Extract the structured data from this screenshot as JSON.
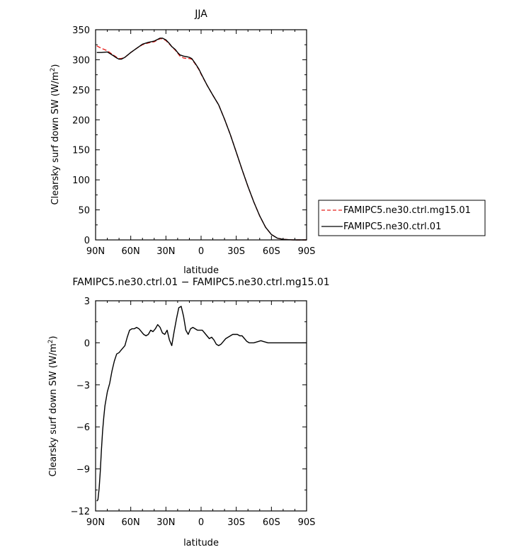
{
  "chart_data": [
    {
      "type": "line",
      "title": "JJA",
      "xlabel": "latitude",
      "ylabel": "Clearsky surf down SW (W/m",
      "ylabel_sup": "2",
      "ylabel_close": ")",
      "xlim": [
        90,
        -90
      ],
      "ylim": [
        0,
        350
      ],
      "xticks": [
        90,
        60,
        30,
        0,
        -30,
        -60,
        -90
      ],
      "xtick_labels": [
        "90N",
        "60N",
        "30N",
        "0",
        "30S",
        "60S",
        "90S"
      ],
      "yticks": [
        0,
        50,
        100,
        150,
        200,
        250,
        300,
        350
      ],
      "ytick_labels": [
        "0",
        "50",
        "100",
        "150",
        "200",
        "250",
        "300",
        "350"
      ],
      "legend_position": "right",
      "series": [
        {
          "name": "FAMIPC5.ne30.ctrl.mg15.01",
          "color": "#e8231f",
          "dash": "dashed",
          "x": [
            89,
            85,
            80,
            75,
            72,
            70,
            68,
            65,
            60,
            55,
            50,
            45,
            40,
            37,
            35,
            33,
            30,
            27,
            25,
            22,
            20,
            18,
            15,
            12,
            10,
            8,
            5,
            2,
            0,
            -5,
            -10,
            -15,
            -20,
            -25,
            -30,
            -35,
            -40,
            -45,
            -50,
            -55,
            -60,
            -65,
            -70,
            -75,
            -78,
            -80,
            -83,
            -85,
            -88,
            -90
          ],
          "y": [
            323,
            319,
            315,
            308,
            304,
            302,
            302,
            304,
            312,
            319,
            325,
            328,
            330,
            333,
            335,
            335,
            332,
            326,
            322,
            316,
            311,
            306,
            303,
            302,
            302,
            301,
            293,
            284,
            276,
            258,
            241,
            225,
            201,
            175,
            146,
            117,
            89,
            63,
            40,
            21,
            9,
            3,
            1,
            0.3,
            0.1,
            0,
            0,
            0,
            0,
            0
          ]
        },
        {
          "name": "FAMIPC5.ne30.ctrl.01",
          "color": "#000000",
          "dash": "solid",
          "x": [
            89,
            85,
            80,
            75,
            72,
            70,
            68,
            65,
            60,
            55,
            50,
            45,
            40,
            37,
            35,
            33,
            30,
            27,
            25,
            22,
            20,
            18,
            15,
            12,
            10,
            8,
            5,
            2,
            0,
            -5,
            -10,
            -15,
            -20,
            -25,
            -30,
            -35,
            -40,
            -45,
            -50,
            -55,
            -60,
            -65,
            -70,
            -75,
            -78,
            -80,
            -83,
            -85,
            -88,
            -90
          ],
          "y": [
            312,
            312,
            313,
            307,
            303,
            301,
            301,
            304,
            312,
            319,
            326,
            329,
            331,
            334,
            336,
            336,
            333,
            327,
            322,
            317,
            312,
            308,
            306,
            305,
            304,
            302,
            294,
            285,
            277,
            258,
            241,
            225,
            201,
            175,
            146,
            117,
            89,
            63,
            40,
            21,
            9,
            3,
            1,
            0.3,
            0.1,
            0,
            0,
            0,
            0,
            0
          ]
        }
      ]
    },
    {
      "type": "line",
      "title": "FAMIPC5.ne30.ctrl.01  −  FAMIPC5.ne30.ctrl.mg15.01",
      "xlabel": "latitude",
      "ylabel": "Clearsky surf down SW (W/m",
      "ylabel_sup": "2",
      "ylabel_close": ")",
      "xlim": [
        90,
        -90
      ],
      "ylim": [
        -12,
        3
      ],
      "xticks": [
        90,
        60,
        30,
        0,
        -30,
        -60,
        -90
      ],
      "xtick_labels": [
        "90N",
        "60N",
        "30N",
        "0",
        "30S",
        "60S",
        "90S"
      ],
      "yticks": [
        -12,
        -9,
        -6,
        -3,
        0,
        3
      ],
      "ytick_labels": [
        "−12",
        "−9",
        "−6",
        "−3",
        "0",
        "3"
      ],
      "series": [
        {
          "color": "#000000",
          "dash": "solid",
          "x": [
            89,
            88,
            87,
            86,
            85,
            84,
            83,
            82,
            80,
            78,
            76,
            74,
            72,
            70,
            68,
            67,
            65,
            63,
            61,
            59,
            57,
            55,
            53,
            51,
            49,
            47,
            45,
            43,
            41,
            39,
            37,
            35,
            33,
            31,
            29,
            27,
            25,
            23,
            21,
            19,
            17,
            15,
            13,
            11,
            9,
            7,
            5,
            3,
            1,
            -1,
            -3,
            -5,
            -7,
            -9,
            -11,
            -13,
            -15,
            -17,
            -19,
            -21,
            -23,
            -25,
            -27,
            -29,
            -31,
            -33,
            -35,
            -37,
            -39,
            -41,
            -43,
            -45,
            -47,
            -49,
            -51,
            -53,
            -55,
            -57,
            -59,
            -61,
            -63,
            -65,
            -67,
            -69,
            -71,
            -73,
            -75,
            -77,
            -79,
            -81,
            -85,
            -90
          ],
          "y": [
            -11.3,
            -11.2,
            -10.4,
            -9.2,
            -7.6,
            -6.3,
            -5.3,
            -4.5,
            -3.5,
            -2.9,
            -2.0,
            -1.3,
            -0.8,
            -0.7,
            -0.5,
            -0.4,
            -0.2,
            0.4,
            0.9,
            1.0,
            1.0,
            1.1,
            1.0,
            0.8,
            0.6,
            0.5,
            0.6,
            0.9,
            0.8,
            1.0,
            1.3,
            1.1,
            0.7,
            0.6,
            0.9,
            0.2,
            -0.2,
            0.8,
            1.7,
            2.5,
            2.6,
            1.9,
            0.9,
            0.6,
            1.0,
            1.1,
            1.0,
            0.9,
            0.9,
            0.9,
            0.7,
            0.5,
            0.3,
            0.4,
            0.2,
            -0.1,
            -0.2,
            -0.1,
            0.1,
            0.3,
            0.4,
            0.5,
            0.6,
            0.6,
            0.6,
            0.5,
            0.5,
            0.3,
            0.1,
            0.0,
            0.0,
            0.0,
            0.05,
            0.1,
            0.15,
            0.1,
            0.05,
            0.0,
            0.0,
            0.0,
            0.0,
            0.0,
            0.0,
            0.0,
            0.0,
            0.0,
            0.0,
            0.0,
            0.0,
            0.0,
            0.0,
            0.0
          ]
        }
      ]
    }
  ]
}
